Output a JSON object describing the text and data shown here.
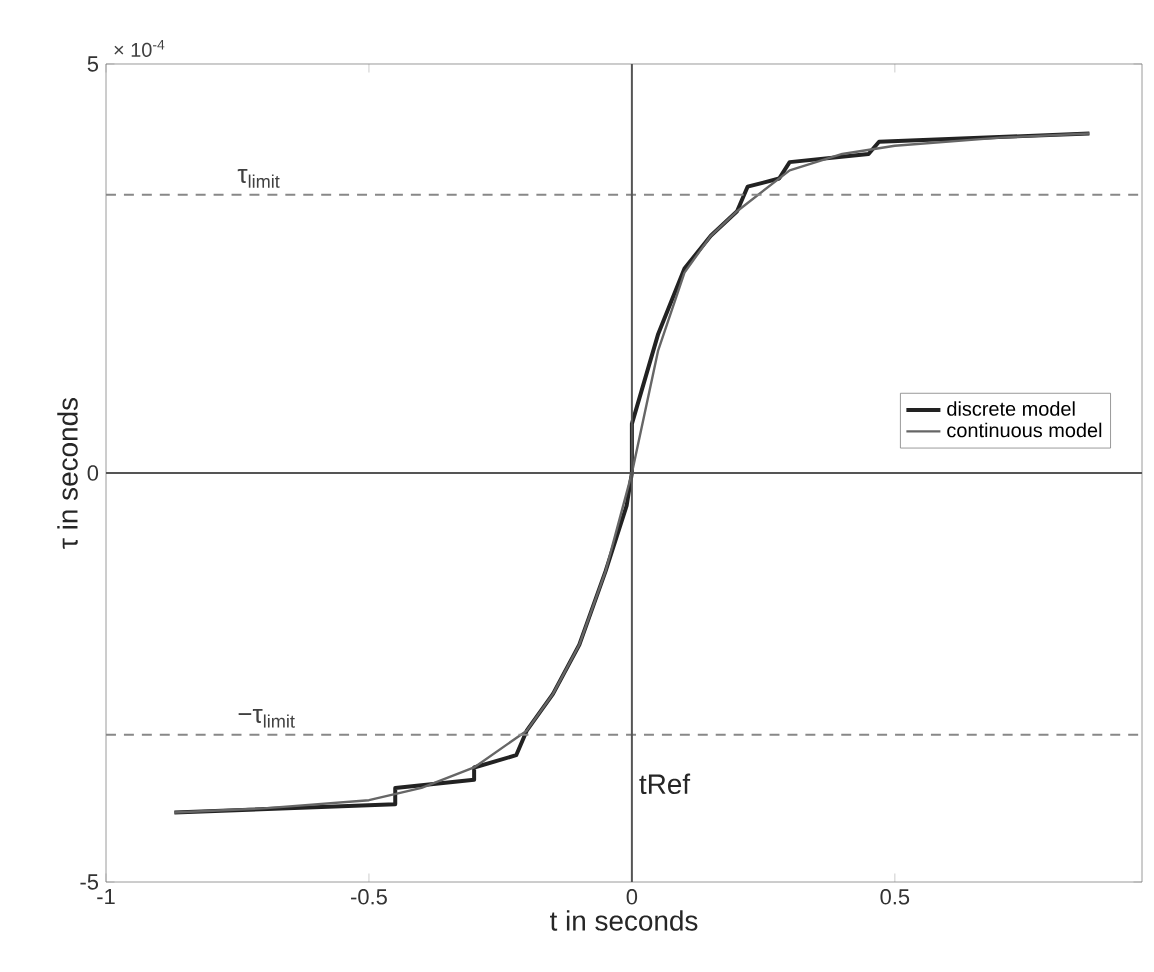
{
  "chart_data": {
    "type": "line",
    "xlabel": "t in seconds",
    "ylabel": "τ in seconds",
    "xlim": [
      -1,
      0.97
    ],
    "xticks": [
      -1,
      -0.5,
      0,
      0.5
    ],
    "ylim": [
      -5,
      5
    ],
    "yticks": [
      -5,
      0,
      5
    ],
    "annotations": [
      "× 10$^{-4}$"
    ],
    "legend": "right",
    "grid": false,
    "marker": "none",
    "ref_lines": [
      {
        "axis": "y",
        "value": 3.4,
        "label": "τ$_{limit}$",
        "color": "#888888",
        "line_style": "dashed"
      },
      {
        "axis": "y",
        "value": -3.2,
        "label": "−τ$_{limit}$",
        "color": "#888888",
        "line_style": "dashed"
      },
      {
        "axis": "y",
        "value": 0,
        "color": "#555555",
        "line_style": "solid"
      },
      {
        "axis": "x",
        "value": 0,
        "label": "tRef",
        "color": "#555555",
        "line_style": "solid"
      }
    ],
    "series": [
      {
        "name": "discrete model",
        "color": "#222222",
        "x": [
          -0.87,
          -0.45,
          -0.45,
          -0.3,
          -0.3,
          -0.22,
          -0.2,
          -0.15,
          -0.1,
          -0.05,
          -0.01,
          0,
          0,
          0.05,
          0.1,
          0.15,
          0.2,
          0.22,
          0.28,
          0.3,
          0.45,
          0.47,
          0.87
        ],
        "values": [
          -4.15,
          -4.05,
          -3.85,
          -3.75,
          -3.6,
          -3.45,
          -3.15,
          -2.7,
          -2.1,
          -1.2,
          -0.4,
          0,
          0.6,
          1.7,
          2.5,
          2.9,
          3.2,
          3.5,
          3.6,
          3.8,
          3.9,
          4.05,
          4.15
        ]
      },
      {
        "name": "continuous model",
        "color": "#666666",
        "x": [
          -0.87,
          -0.7,
          -0.5,
          -0.4,
          -0.3,
          -0.2,
          -0.15,
          -0.1,
          -0.05,
          0,
          0.05,
          0.1,
          0.15,
          0.2,
          0.3,
          0.4,
          0.5,
          0.7,
          0.87
        ],
        "values": [
          -4.15,
          -4.1,
          -4.0,
          -3.85,
          -3.6,
          -3.15,
          -2.7,
          -2.1,
          -1.2,
          0,
          1.5,
          2.45,
          2.9,
          3.2,
          3.7,
          3.9,
          4.0,
          4.1,
          4.15
        ]
      }
    ]
  }
}
